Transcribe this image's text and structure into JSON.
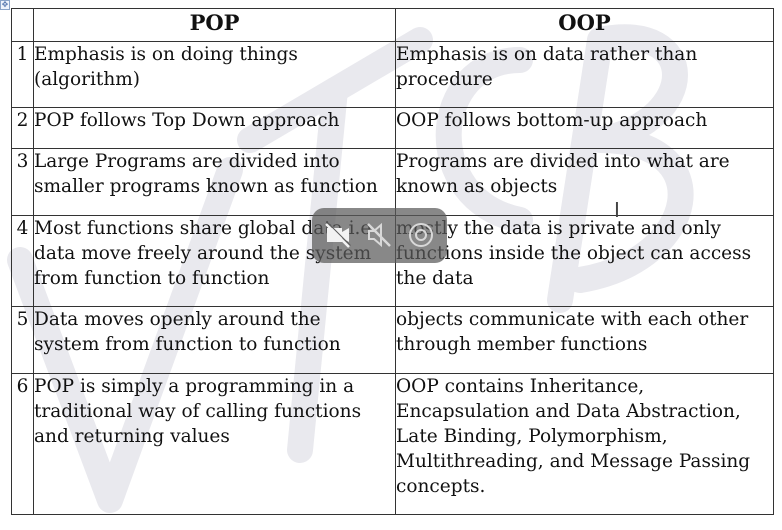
{
  "table": {
    "headers": [
      "",
      "POP",
      "OOP"
    ],
    "rows": [
      {
        "num": "1",
        "pop": "Emphasis is on doing things\n(algorithm)",
        "oop": "Emphasis is on data rather than\nprocedure"
      },
      {
        "num": "2",
        "pop": "POP follows Top Down approach",
        "oop": "OOP follows bottom-up approach"
      },
      {
        "num": "3",
        "pop": "Large Programs are divided into\nsmaller programs known as function",
        "oop": "Programs are divided into what are\nknown as objects"
      },
      {
        "num": "4",
        "pop": "Most functions share global data i.e\ndata move freely around the system\nfrom function to function",
        "oop": "mostly the data is private and only\nfunctions inside the object can access\nthe data"
      },
      {
        "num": "5",
        "pop": "Data moves openly around the\nsystem from function to function",
        "oop": "objects communicate with each other\nthrough member functions"
      },
      {
        "num": "6",
        "pop": "POP is simply a programming in a\ntraditional way of calling functions\nand returning values",
        "oop": "OOP contains Inheritance,\nEncapsulation and Data Abstraction,\nLate Binding, Polymorphism,\nMultithreading, and Message Passing\nconcepts."
      }
    ]
  },
  "overlay": {
    "icons": [
      "no-video-icon",
      "mute-icon",
      "record-icon"
    ]
  }
}
